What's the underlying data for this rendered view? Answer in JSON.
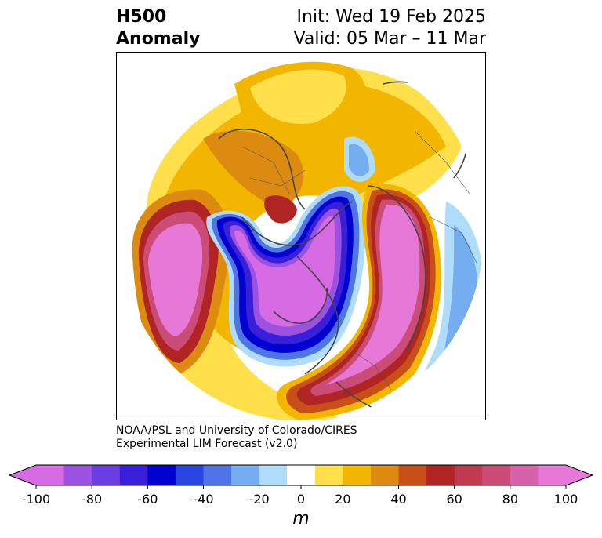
{
  "header": {
    "variable": "H500",
    "field": "Anomaly",
    "init_line": "Init: Wed 19 Feb 2025",
    "valid_line": "Valid: 05 Mar – 11 Mar"
  },
  "credit": {
    "line1": "NOAA/PSL and University of Colorado/CIRES",
    "line2": "Experimental LIM Forecast (v2.0)"
  },
  "colorbar": {
    "units": "m",
    "tick_labels": [
      "-100",
      "-80",
      "-60",
      "-40",
      "-20",
      "0",
      "20",
      "40",
      "60",
      "80",
      "100"
    ],
    "levels": [
      -100,
      -90,
      -80,
      -70,
      -60,
      -50,
      -40,
      -30,
      -20,
      -10,
      10,
      20,
      30,
      40,
      50,
      60,
      70,
      80,
      90,
      100
    ],
    "colors": [
      "#d66be4",
      "#9b52e0",
      "#6a3ee0",
      "#3a1fd8",
      "#0000d0",
      "#2a46e0",
      "#4e74e6",
      "#74aef0",
      "#aedcfa",
      "#ffffff",
      "#ffe04a",
      "#f2b600",
      "#dc8a10",
      "#c85018",
      "#b02424",
      "#c03a50",
      "#cc4c78",
      "#d662aa",
      "#e878d8"
    ],
    "extend": "both"
  },
  "map": {
    "projection": "north-polar-stereographic",
    "anomaly_features": [
      {
        "region": "north-pacific",
        "sign": "positive"
      },
      {
        "region": "canada-arctic",
        "sign": "negative"
      },
      {
        "region": "atlantic-eastern-us",
        "sign": "positive"
      },
      {
        "region": "siberia",
        "sign": "positive"
      },
      {
        "region": "europe",
        "sign": "negative"
      }
    ]
  }
}
